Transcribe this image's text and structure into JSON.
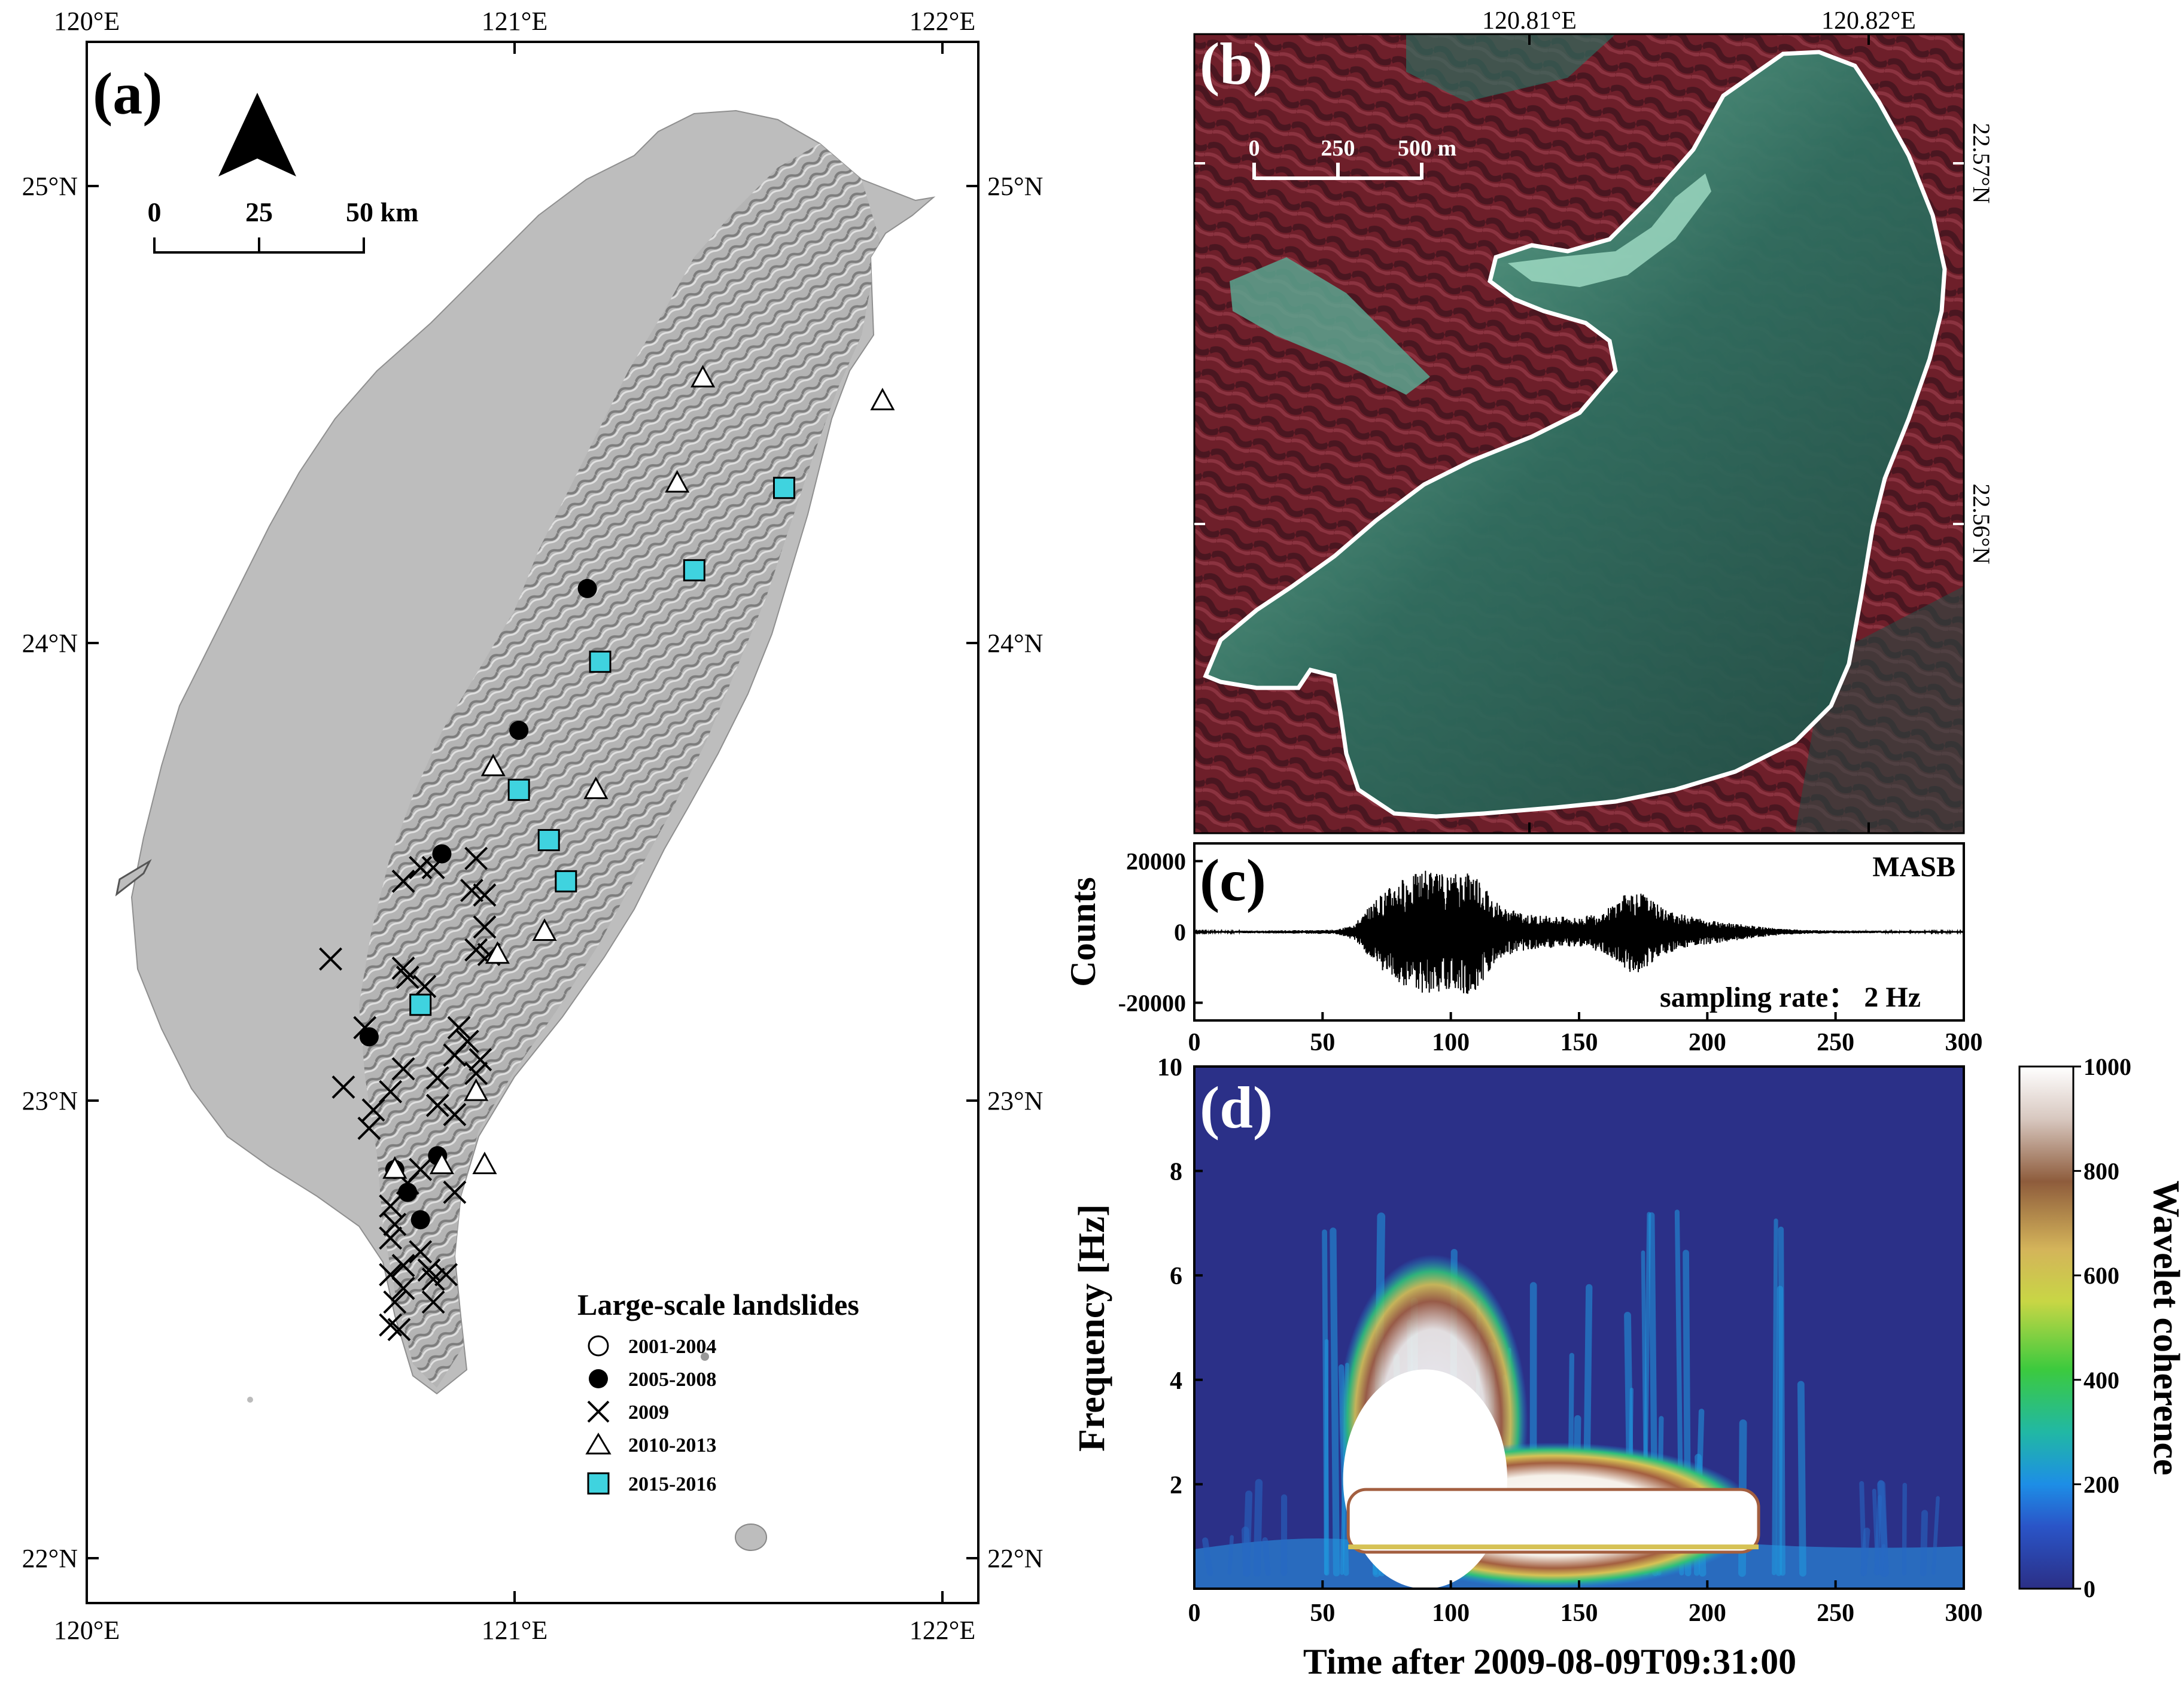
{
  "panel_a": {
    "label": "(a)",
    "lon_ticks": [
      "120°E",
      "121°E",
      "122°E"
    ],
    "lat_ticks": [
      "25°N",
      "24°N",
      "23°N",
      "22°N"
    ],
    "scale": {
      "ticks": [
        "0",
        "25",
        "50 km"
      ]
    },
    "legend": {
      "title": "Large-scale landslides",
      "items": [
        {
          "symbol": "open-circle",
          "label": "2001-2004"
        },
        {
          "symbol": "filled-circle",
          "label": "2005-2008"
        },
        {
          "symbol": "cross",
          "label": "2009"
        },
        {
          "symbol": "open-triangle",
          "label": "2010-2013"
        },
        {
          "symbol": "cyan-square",
          "label": "2015-2016"
        }
      ]
    },
    "markers": {
      "filled-circle": [
        [
          121.17,
          24.12
        ],
        [
          121.01,
          23.81
        ],
        [
          120.83,
          23.54
        ],
        [
          120.66,
          23.14
        ],
        [
          120.72,
          22.85
        ],
        [
          120.82,
          22.88
        ],
        [
          120.75,
          22.8
        ],
        [
          120.78,
          22.74
        ]
      ],
      "cross": [
        [
          120.57,
          23.31
        ],
        [
          120.74,
          23.48
        ],
        [
          120.78,
          23.51
        ],
        [
          120.81,
          23.51
        ],
        [
          120.91,
          23.53
        ],
        [
          120.9,
          23.46
        ],
        [
          120.93,
          23.45
        ],
        [
          120.93,
          23.38
        ],
        [
          120.91,
          23.33
        ],
        [
          120.94,
          23.32
        ],
        [
          120.74,
          23.29
        ],
        [
          120.75,
          23.27
        ],
        [
          120.79,
          23.25
        ],
        [
          120.65,
          23.16
        ],
        [
          120.87,
          23.16
        ],
        [
          120.89,
          23.13
        ],
        [
          120.86,
          23.1
        ],
        [
          120.92,
          23.09
        ],
        [
          120.91,
          23.06
        ],
        [
          120.74,
          23.07
        ],
        [
          120.82,
          23.05
        ],
        [
          120.6,
          23.03
        ],
        [
          120.71,
          23.02
        ],
        [
          120.67,
          22.98
        ],
        [
          120.66,
          22.94
        ],
        [
          120.82,
          22.99
        ],
        [
          120.86,
          22.97
        ],
        [
          120.78,
          22.85
        ],
        [
          120.75,
          22.82
        ],
        [
          120.86,
          22.8
        ],
        [
          120.71,
          22.77
        ],
        [
          120.72,
          22.73
        ],
        [
          120.71,
          22.7
        ],
        [
          120.78,
          22.67
        ],
        [
          120.74,
          22.64
        ],
        [
          120.71,
          22.62
        ],
        [
          120.8,
          22.63
        ],
        [
          120.84,
          22.62
        ],
        [
          120.81,
          22.61
        ],
        [
          120.74,
          22.59
        ],
        [
          120.72,
          22.56
        ],
        [
          120.81,
          22.56
        ],
        [
          120.71,
          22.51
        ],
        [
          120.73,
          22.5
        ]
      ],
      "open-triangle": [
        [
          121.44,
          24.58
        ],
        [
          121.86,
          24.53
        ],
        [
          121.38,
          24.35
        ],
        [
          120.95,
          23.73
        ],
        [
          121.19,
          23.68
        ],
        [
          120.96,
          23.32
        ],
        [
          121.07,
          23.37
        ],
        [
          120.91,
          23.02
        ],
        [
          120.83,
          22.86
        ],
        [
          120.72,
          22.85
        ],
        [
          120.93,
          22.86
        ]
      ],
      "cyan-square": [
        [
          121.63,
          24.34
        ],
        [
          121.42,
          24.16
        ],
        [
          121.2,
          23.96
        ],
        [
          121.01,
          23.68
        ],
        [
          121.08,
          23.57
        ],
        [
          121.12,
          23.48
        ],
        [
          120.78,
          23.21
        ]
      ]
    },
    "colors": {
      "cyan": "#3fd3df",
      "land": "#bdbdbd"
    }
  },
  "panel_b": {
    "label": "(b)",
    "lon_ticks": [
      "120.81°E",
      "120.82°E"
    ],
    "lat_ticks": [
      "22.57°N",
      "22.56°N"
    ],
    "scale": {
      "ticks": [
        "0",
        "250",
        "500 m"
      ]
    }
  },
  "panel_c": {
    "label": "(c)",
    "station": "MASB",
    "sampling": "sampling rate： 2 Hz",
    "ylabel": "Counts"
  },
  "panel_d": {
    "label": "(d)",
    "ylabel": "Frequency [Hz]",
    "xlabel": "Time after 2009-08-09T09:31:00",
    "colorbar_label": "Wavelet coherence",
    "colorbar_ticks": [
      "1000",
      "800",
      "600",
      "400",
      "200",
      "0"
    ]
  },
  "chart_data": [
    {
      "type": "line",
      "panel": "c",
      "xlim": [
        0,
        300
      ],
      "ylim": [
        -25000,
        25000
      ],
      "x_ticks": [
        "0",
        "50",
        "100",
        "150",
        "200",
        "250",
        "300"
      ],
      "y_ticks": [
        "20000",
        "0",
        "-20000"
      ],
      "y_tick_values": [
        20000,
        0,
        -20000
      ],
      "envelope": {
        "x": [
          0,
          55,
          60,
          65,
          70,
          75,
          80,
          85,
          90,
          95,
          100,
          105,
          110,
          115,
          120,
          125,
          130,
          140,
          150,
          160,
          165,
          170,
          175,
          180,
          185,
          190,
          200,
          210,
          220,
          230,
          240,
          250,
          300
        ],
        "amplitude": [
          200,
          600,
          1500,
          4000,
          9000,
          12000,
          15000,
          16000,
          18000,
          17000,
          16000,
          18000,
          17000,
          11000,
          7000,
          6000,
          5000,
          4500,
          4000,
          6000,
          9000,
          12000,
          11000,
          8000,
          6000,
          5000,
          3500,
          2500,
          1500,
          800,
          500,
          400,
          250
        ]
      }
    },
    {
      "type": "heatmap",
      "panel": "d",
      "xlim": [
        0,
        300
      ],
      "ylim": [
        0,
        10
      ],
      "x_ticks": [
        "0",
        "50",
        "100",
        "150",
        "200",
        "250",
        "300"
      ],
      "y_ticks": [
        "10",
        "8",
        "6",
        "4",
        "2"
      ],
      "y_tick_values": [
        10,
        8,
        6,
        4,
        2
      ],
      "zlim": [
        0,
        1000
      ],
      "high_coherence_region": {
        "time_start": 60,
        "time_end": 220,
        "freq_low": 0.7,
        "freq_high_peak": 4.3,
        "peak_time": 90
      }
    }
  ]
}
